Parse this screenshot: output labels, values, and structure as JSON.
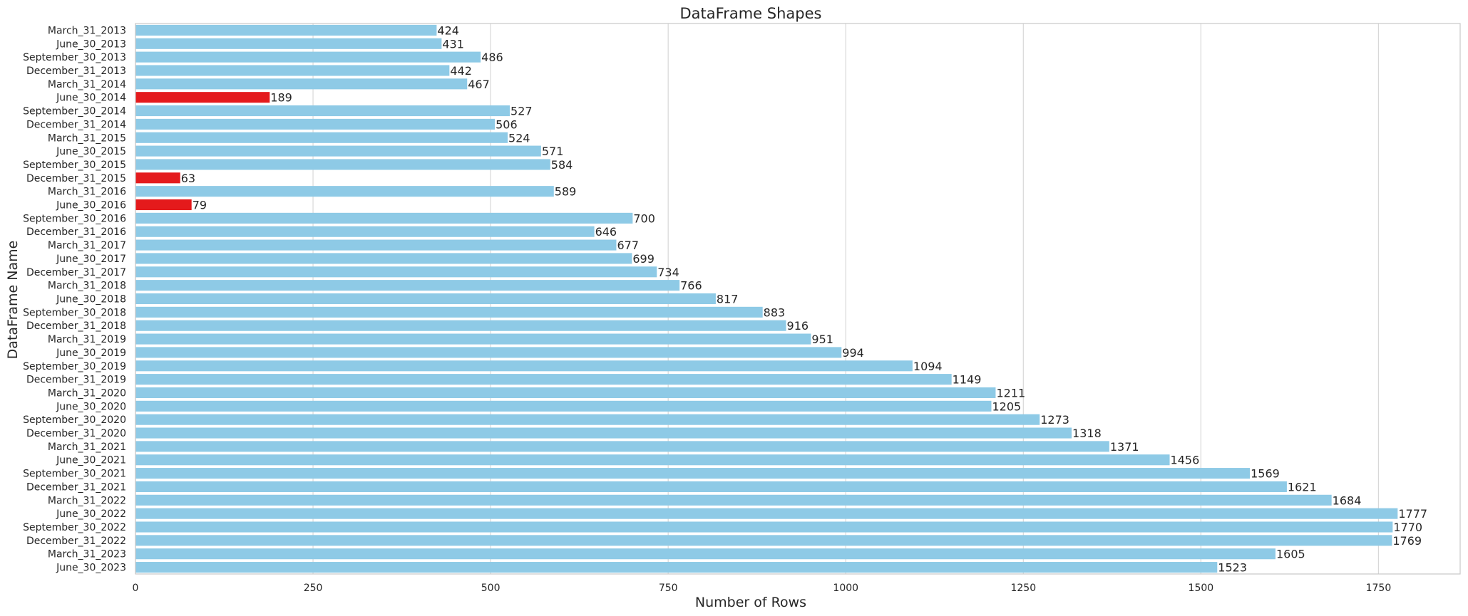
{
  "chart_data": {
    "type": "bar",
    "orientation": "horizontal",
    "title": "DataFrame Shapes",
    "xlabel": "Number of Rows",
    "ylabel": "DataFrame Name",
    "xlim": [
      0,
      1865
    ],
    "xticks": [
      0,
      250,
      500,
      750,
      1000,
      1250,
      1500,
      1750
    ],
    "grid": "vertical",
    "colors": {
      "normal": "#8ecae6",
      "highlight": "#e41a1c",
      "grid": "#d8d8d8",
      "frame": "#c8c8c8"
    },
    "categories": [
      "March_31_2013",
      "June_30_2013",
      "September_30_2013",
      "December_31_2013",
      "March_31_2014",
      "June_30_2014",
      "September_30_2014",
      "December_31_2014",
      "March_31_2015",
      "June_30_2015",
      "September_30_2015",
      "December_31_2015",
      "March_31_2016",
      "June_30_2016",
      "September_30_2016",
      "December_31_2016",
      "March_31_2017",
      "June_30_2017",
      "December_31_2017",
      "March_31_2018",
      "June_30_2018",
      "September_30_2018",
      "December_31_2018",
      "March_31_2019",
      "June_30_2019",
      "September_30_2019",
      "December_31_2019",
      "March_31_2020",
      "June_30_2020",
      "September_30_2020",
      "December_31_2020",
      "March_31_2021",
      "June_30_2021",
      "September_30_2021",
      "December_31_2021",
      "March_31_2022",
      "June_30_2022",
      "September_30_2022",
      "December_31_2022",
      "March_31_2023",
      "June_30_2023"
    ],
    "values": [
      424,
      431,
      486,
      442,
      467,
      189,
      527,
      506,
      524,
      571,
      584,
      63,
      589,
      79,
      700,
      646,
      677,
      699,
      734,
      766,
      817,
      883,
      916,
      951,
      994,
      1094,
      1149,
      1211,
      1205,
      1273,
      1318,
      1371,
      1456,
      1569,
      1621,
      1684,
      1777,
      1770,
      1769,
      1605,
      1523
    ],
    "highlighted": [
      "June_30_2014",
      "December_31_2015",
      "June_30_2016"
    ]
  }
}
